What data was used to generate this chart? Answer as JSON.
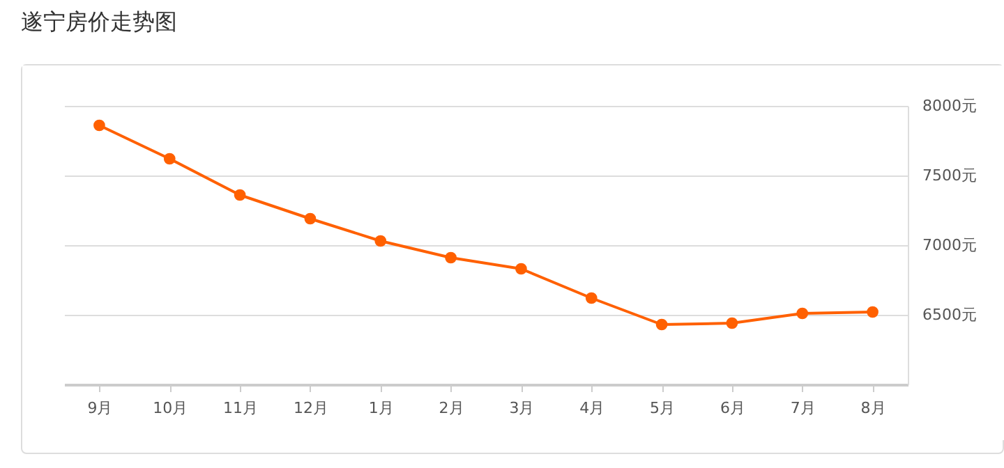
{
  "chart_data": {
    "type": "line",
    "title": "遂宁房价走势图",
    "categories": [
      "9月",
      "10月",
      "11月",
      "12月",
      "1月",
      "2月",
      "3月",
      "4月",
      "5月",
      "6月",
      "7月",
      "8月"
    ],
    "series": [
      {
        "color": "#ff6000",
        "values": [
          7860,
          7620,
          7360,
          7190,
          7030,
          6910,
          6830,
          6620,
          6430,
          6440,
          6510,
          6520
        ]
      }
    ],
    "ylim": [
      6000,
      8000
    ],
    "yticks": [
      {
        "value": 6500,
        "label": "6500元"
      },
      {
        "value": 7000,
        "label": "7000元"
      },
      {
        "value": 7500,
        "label": "7500元"
      },
      {
        "value": 8000,
        "label": "8000元"
      }
    ],
    "grid": "y",
    "marker": "circle",
    "line_style": "solid",
    "legend": false
  }
}
